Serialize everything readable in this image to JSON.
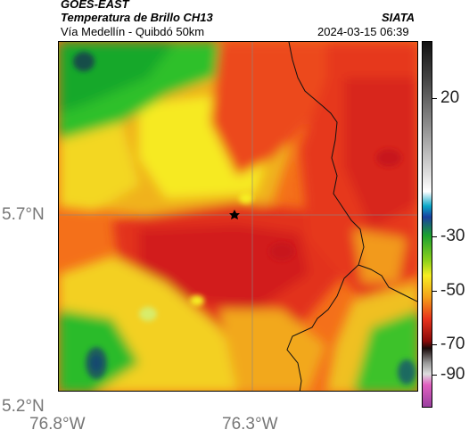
{
  "header": {
    "satellite": "GOES-EAST",
    "product": "Temperatura de Brillo CH13",
    "region": "Vía Medellín - Quibdó 50km",
    "agency": "SIATA",
    "datetime": "2024-03-15 06:39"
  },
  "axes": {
    "lat_labels": [
      "5.7°N",
      "5.2°N"
    ],
    "lon_labels": [
      "76.8°W",
      "76.3°W"
    ]
  },
  "colorbar": {
    "labels": [
      "20",
      "-30",
      "-50",
      "-70",
      "-90"
    ]
  },
  "map": {
    "marker": "station-star-icon",
    "gridlines": true,
    "colors": {
      "green": "#1db82a",
      "yellow": "#f6ee22",
      "orange": "#f47a1a",
      "red": "#e8321c",
      "deep_red": "#c8141a",
      "cold_blue": "#1d6a6a"
    }
  }
}
